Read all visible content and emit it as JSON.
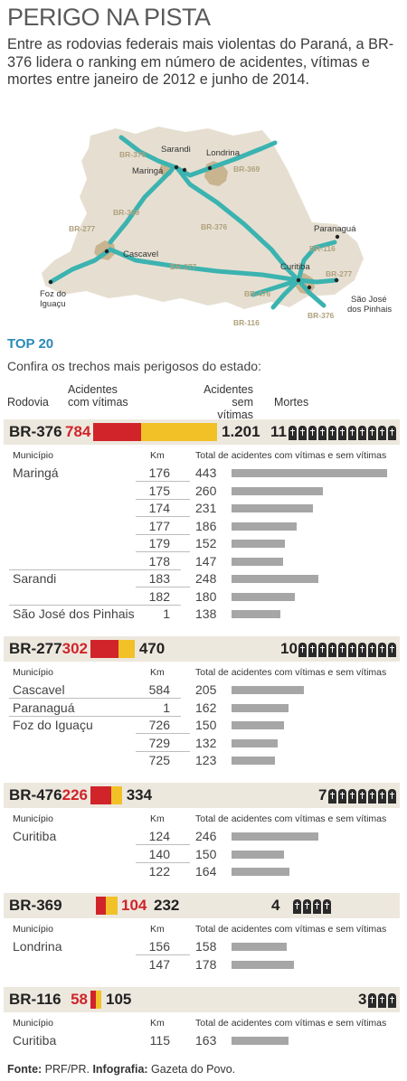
{
  "title": "PERIGO NA PISTA",
  "intro": "Entre as rodovias federais mais violentas do Paraná, a BR-376 lidera o ranking em número de acidentes, vítimas e mortes entre janeiro de 2012 e junho de 2014.",
  "map": {
    "cities": [
      "Sarandi",
      "Londrina",
      "Maringá",
      "Cascavel",
      "Foz do",
      "Iguaçu",
      "Curitiba",
      "Paranaguá",
      "São José",
      "dos Pinhais"
    ],
    "road_labels": [
      "BR-376",
      "BR-369",
      "BR-369",
      "BR-376",
      "BR-277",
      "BR-277",
      "BR-116",
      "BR-277",
      "BR-476",
      "BR-116",
      "BR-376"
    ],
    "colors": {
      "land": "#e6dfd1",
      "road": "#3bb3b0",
      "label": "#b0a07c",
      "urban": "#c8b48f"
    }
  },
  "section_title": "TOP 20",
  "section_sub": "Confira os trechos mais perigosos do estado:",
  "headers": {
    "rodovia": "Rodovia",
    "acid_com_1": "Acidentes",
    "acid_com_2": "com vítimas",
    "acid_sem_1": "Acidentes",
    "acid_sem_2": "sem vítimas",
    "mortes": "Mortes"
  },
  "col_labels": {
    "municipio": "Município",
    "km": "Km",
    "total": "Total de acidentes com vítimas e sem vítimas"
  },
  "chart_data": {
    "type": "table",
    "roads": [
      {
        "rodovia": "BR-376",
        "com_vitimas": 784,
        "sem_vitimas": "1.201",
        "sem_vitimas_value": 1201,
        "mortes": 11,
        "trechos": [
          {
            "municipio": "Maringá",
            "km": 176,
            "total": 443
          },
          {
            "municipio": "",
            "km": 175,
            "total": 260
          },
          {
            "municipio": "",
            "km": 174,
            "total": 231
          },
          {
            "municipio": "",
            "km": 177,
            "total": 186
          },
          {
            "municipio": "",
            "km": 179,
            "total": 152
          },
          {
            "municipio": "",
            "km": 178,
            "total": 147
          },
          {
            "municipio": "Sarandi",
            "km": 183,
            "total": 248
          },
          {
            "municipio": "",
            "km": 182,
            "total": 180
          },
          {
            "municipio": "São José dos Pinhais",
            "km": 1,
            "total": 138
          }
        ]
      },
      {
        "rodovia": "BR-277",
        "com_vitimas": 302,
        "sem_vitimas": "470",
        "sem_vitimas_value": 470,
        "mortes": 10,
        "trechos": [
          {
            "municipio": "Cascavel",
            "km": 584,
            "total": 205
          },
          {
            "municipio": "Paranaguá",
            "km": 1,
            "total": 162
          },
          {
            "municipio": "Foz do Iguaçu",
            "km": 726,
            "total": 150
          },
          {
            "municipio": "",
            "km": 729,
            "total": 132
          },
          {
            "municipio": "",
            "km": 725,
            "total": 123
          }
        ]
      },
      {
        "rodovia": "BR-476",
        "com_vitimas": 226,
        "sem_vitimas": "334",
        "sem_vitimas_value": 334,
        "mortes": 7,
        "trechos": [
          {
            "municipio": "Curitiba",
            "km": 124,
            "total": 246
          },
          {
            "municipio": "",
            "km": 140,
            "total": 150
          },
          {
            "municipio": "",
            "km": 122,
            "total": 164
          }
        ]
      },
      {
        "rodovia": "BR-369",
        "com_vitimas": 104,
        "sem_vitimas": "232",
        "sem_vitimas_value": 232,
        "mortes": 4,
        "trechos": [
          {
            "municipio": "Londrina",
            "km": 156,
            "total": 158
          },
          {
            "municipio": "",
            "km": 147,
            "total": 178
          }
        ]
      },
      {
        "rodovia": "BR-116",
        "com_vitimas": 58,
        "sem_vitimas": "105",
        "sem_vitimas_value": 105,
        "mortes": 3,
        "trechos": [
          {
            "municipio": "Curitiba",
            "km": 115,
            "total": 163
          }
        ]
      }
    ],
    "colors": {
      "com_vitimas": "#d0242a",
      "sem_vitimas": "#f2c128",
      "total_bar": "#a6a6a6",
      "band": "#ede8de"
    }
  },
  "source": {
    "label1": "Fonte:",
    "text1": " PRF/PR. ",
    "label2": "Infografia:",
    "text2": " Gazeta do Povo."
  }
}
